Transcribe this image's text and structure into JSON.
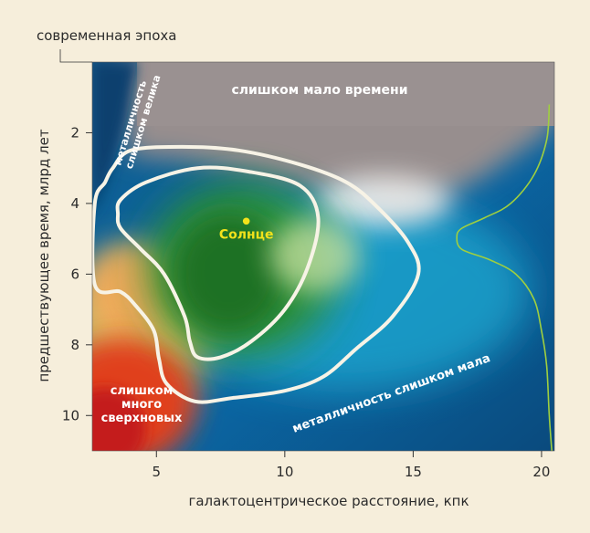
{
  "chart_data": {
    "type": "heatmap",
    "title": "",
    "xlabel": "галактоцентрическое расстояние, кпк",
    "ylabel": "предшествующее время, млрд лет",
    "top_label": "современная эпоха",
    "xlim": [
      2.5,
      20.5
    ],
    "ylim": [
      0,
      11
    ],
    "y_inverted": true,
    "x_ticks": [
      5,
      10,
      15,
      20
    ],
    "y_ticks": [
      2,
      4,
      6,
      8,
      10
    ],
    "regions": [
      {
        "name": "too_little_time",
        "label": "слишком мало времени",
        "color": "#978e8e"
      },
      {
        "name": "metallicity_too_high",
        "label": "металличность слишком велика",
        "color": "#0f5a8a"
      },
      {
        "name": "too_many_supernovae",
        "label": "слишком много сверхновых",
        "color": "#d9261b"
      },
      {
        "name": "metallicity_too_low",
        "label": "металличность слишком мала",
        "color": "#0b6aa8"
      },
      {
        "name": "habitable_zone",
        "label": "",
        "color": "#2f8e32"
      }
    ],
    "sun": {
      "label": "Солнце",
      "x": 8.5,
      "y": 4.5,
      "color": "#f2e21b"
    },
    "contours": [
      {
        "name": "inner",
        "points": [
          [
            3.5,
            4.3
          ],
          [
            3.6,
            3.9
          ],
          [
            4.6,
            3.4
          ],
          [
            6.6,
            3.0
          ],
          [
            8.6,
            3.1
          ],
          [
            10.6,
            3.5
          ],
          [
            11.3,
            4.4
          ],
          [
            10.9,
            5.8
          ],
          [
            10.0,
            7.0
          ],
          [
            8.7,
            7.9
          ],
          [
            7.5,
            8.35
          ],
          [
            6.6,
            8.35
          ],
          [
            6.3,
            7.9
          ],
          [
            6.1,
            7.2
          ],
          [
            5.3,
            6.0
          ],
          [
            4.4,
            5.3
          ],
          [
            3.6,
            4.7
          ]
        ]
      },
      {
        "name": "outer",
        "points": [
          [
            2.6,
            4.0
          ],
          [
            3.0,
            3.4
          ],
          [
            3.3,
            3.0
          ],
          [
            4.0,
            2.5
          ],
          [
            6.0,
            2.4
          ],
          [
            8.2,
            2.5
          ],
          [
            10.6,
            2.9
          ],
          [
            12.4,
            3.4
          ],
          [
            13.6,
            4.1
          ],
          [
            14.8,
            5.1
          ],
          [
            15.2,
            6.0
          ],
          [
            14.2,
            7.2
          ],
          [
            12.8,
            8.1
          ],
          [
            11.5,
            8.9
          ],
          [
            10.0,
            9.3
          ],
          [
            8.0,
            9.5
          ],
          [
            6.5,
            9.6
          ],
          [
            5.4,
            9.1
          ],
          [
            5.1,
            8.4
          ],
          [
            4.9,
            7.6
          ],
          [
            4.2,
            6.9
          ],
          [
            3.6,
            6.5
          ],
          [
            2.6,
            6.3
          ]
        ]
      },
      {
        "name": "green_distribution",
        "points": [
          [
            20.3,
            1.2
          ],
          [
            20.2,
            2.2
          ],
          [
            19.7,
            3.2
          ],
          [
            18.8,
            4.0
          ],
          [
            17.8,
            4.4
          ],
          [
            16.9,
            4.7
          ],
          [
            16.7,
            4.95
          ],
          [
            16.9,
            5.3
          ],
          [
            18.0,
            5.6
          ],
          [
            19.0,
            6.0
          ],
          [
            19.7,
            6.7
          ],
          [
            20.0,
            7.6
          ],
          [
            20.2,
            8.6
          ],
          [
            20.3,
            10.0
          ],
          [
            20.4,
            11.0
          ]
        ]
      }
    ]
  }
}
